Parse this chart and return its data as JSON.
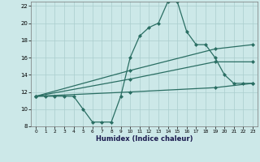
{
  "xlabel": "Humidex (Indice chaleur)",
  "x": [
    0,
    1,
    2,
    3,
    4,
    5,
    6,
    7,
    8,
    9,
    10,
    11,
    12,
    13,
    14,
    15,
    16,
    17,
    18,
    19,
    20,
    21,
    22,
    23
  ],
  "line1": [
    11.5,
    11.5,
    11.5,
    11.5,
    11.5,
    10.0,
    8.5,
    8.5,
    8.5,
    11.5,
    16.0,
    18.5,
    19.5,
    20.0,
    22.5,
    22.5,
    19.0,
    17.5,
    17.5,
    16.0,
    14.0,
    13.0,
    13.0,
    13.0
  ],
  "line2_x": [
    0,
    10,
    19,
    23
  ],
  "line2_y": [
    11.5,
    14.5,
    17.0,
    17.5
  ],
  "line3_x": [
    0,
    10,
    19,
    23
  ],
  "line3_y": [
    11.5,
    13.5,
    15.5,
    15.5
  ],
  "line4_x": [
    0,
    10,
    19,
    23
  ],
  "line4_y": [
    11.5,
    12.0,
    12.5,
    13.0
  ],
  "ylim": [
    8,
    22.5
  ],
  "xlim": [
    -0.5,
    23.5
  ],
  "yticks": [
    8,
    10,
    12,
    14,
    16,
    18,
    20,
    22
  ],
  "xticks": [
    0,
    1,
    2,
    3,
    4,
    5,
    6,
    7,
    8,
    9,
    10,
    11,
    12,
    13,
    14,
    15,
    16,
    17,
    18,
    19,
    20,
    21,
    22,
    23
  ],
  "line_color": "#2a6e63",
  "bg_color": "#cce8e8",
  "grid_color": "#aacece"
}
